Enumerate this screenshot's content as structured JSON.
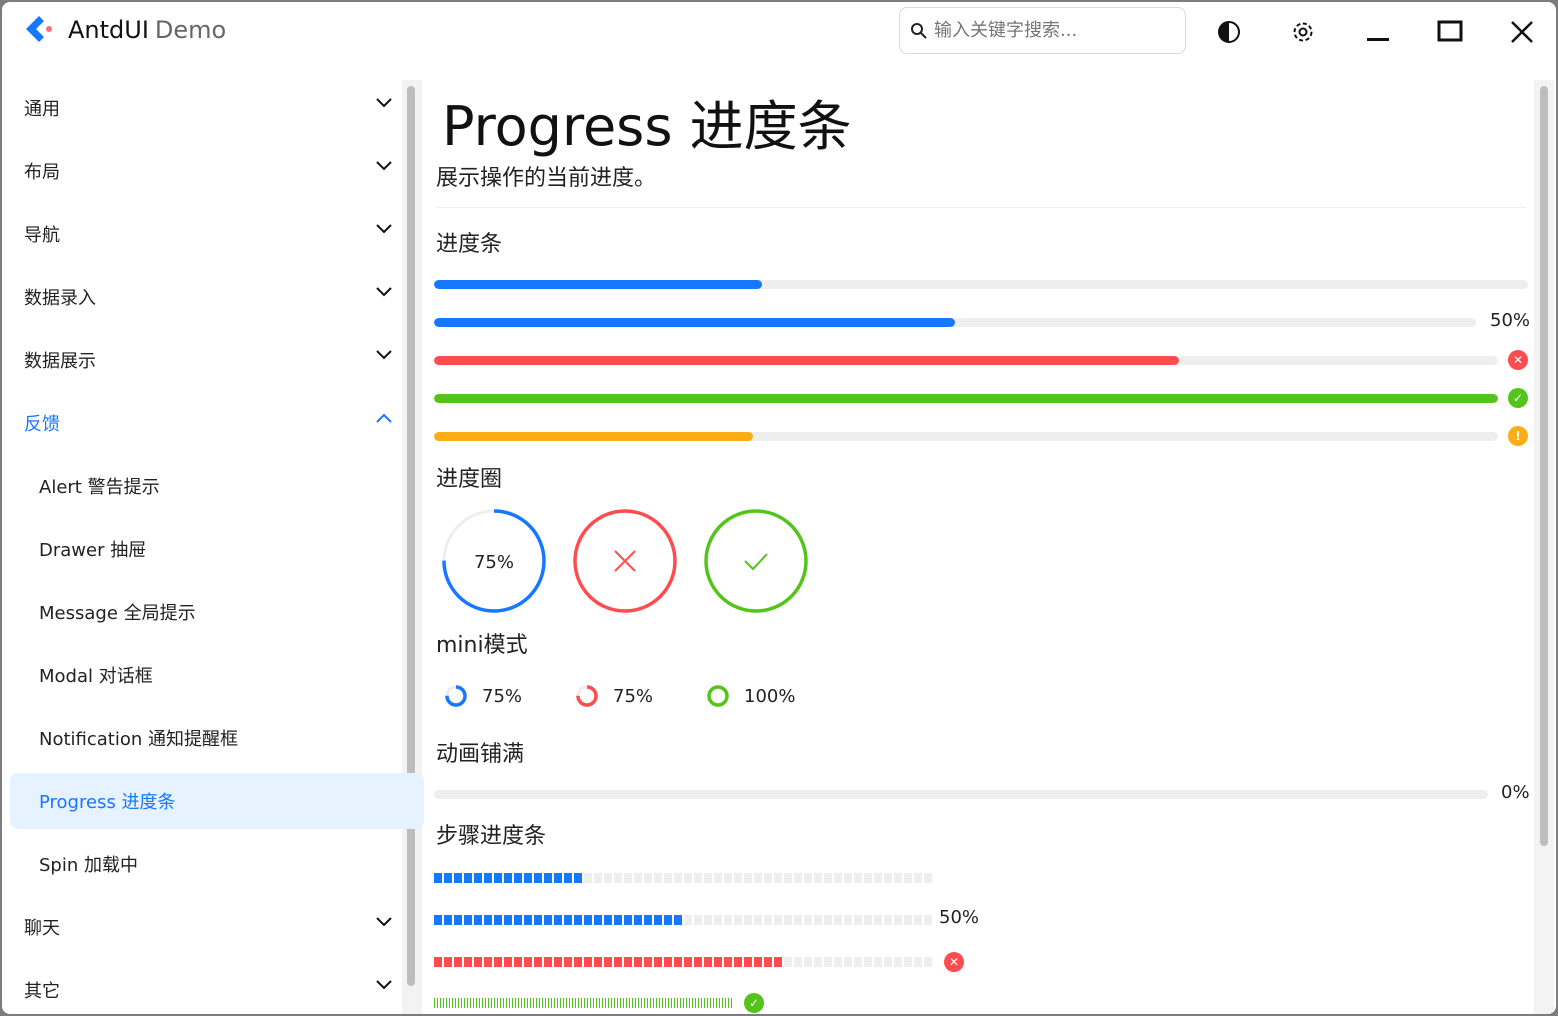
{
  "app": {
    "title": "AntdUI",
    "subtitle": "Demo"
  },
  "search": {
    "placeholder": "输入关键字搜索..."
  },
  "sidebar": {
    "items": [
      {
        "label": "通用",
        "type": "group"
      },
      {
        "label": "布局",
        "type": "group"
      },
      {
        "label": "导航",
        "type": "group"
      },
      {
        "label": "数据录入",
        "type": "group"
      },
      {
        "label": "数据展示",
        "type": "group"
      },
      {
        "label": "反馈",
        "type": "group-open"
      },
      {
        "label": "Alert 警告提示",
        "type": "sub"
      },
      {
        "label": "Drawer 抽屉",
        "type": "sub"
      },
      {
        "label": "Message 全局提示",
        "type": "sub"
      },
      {
        "label": "Modal 对话框",
        "type": "sub"
      },
      {
        "label": "Notification 通知提醒框",
        "type": "sub"
      },
      {
        "label": "Progress 进度条",
        "type": "sub-active"
      },
      {
        "label": "Spin 加载中",
        "type": "sub"
      },
      {
        "label": "聊天",
        "type": "group"
      },
      {
        "label": "其它",
        "type": "group"
      }
    ]
  },
  "main": {
    "title": "Progress 进度条",
    "description": "展示操作的当前进度。",
    "sections": {
      "bars": "进度条",
      "circles": "进度圈",
      "mini": "mini模式",
      "anim": "动画铺满",
      "steps": "步骤进度条"
    },
    "bars": [
      {
        "percent": 30,
        "color": "#1677ff",
        "status": "normal"
      },
      {
        "percent": 50,
        "color": "#1677ff",
        "text": "50%"
      },
      {
        "percent": 70,
        "color": "#ff4d4f",
        "status": "error"
      },
      {
        "percent": 100,
        "color": "#52c41a",
        "status": "success"
      },
      {
        "percent": 30,
        "color": "#faad14",
        "status": "warning"
      }
    ],
    "circles": [
      {
        "percent": 75,
        "color": "#1677ff",
        "text": "75%"
      },
      {
        "percent": 100,
        "color": "#ff4d4f",
        "status": "error"
      },
      {
        "percent": 100,
        "color": "#52c41a",
        "status": "success"
      }
    ],
    "minis": [
      {
        "percent": 75,
        "color": "#1677ff",
        "text": "75%"
      },
      {
        "percent": 75,
        "color": "#ff4d4f",
        "text": "75%"
      },
      {
        "percent": 100,
        "color": "#52c41a",
        "text": "100%"
      }
    ],
    "anim": {
      "percent": 0,
      "text": "0%"
    },
    "steps": [
      {
        "percent": 30,
        "color": "#1677ff",
        "segments": 50
      },
      {
        "percent": 50,
        "color": "#1677ff",
        "segments": 50,
        "text": "50%"
      },
      {
        "percent": 70,
        "color": "#ff4d4f",
        "segments": 50,
        "status": "error"
      },
      {
        "percent": 100,
        "color": "#52c41a",
        "segments": 100,
        "status": "success"
      }
    ]
  },
  "colors": {
    "primary": "#1677ff",
    "error": "#ff4d4f",
    "success": "#52c41a",
    "warning": "#faad14",
    "track": "#eeeeee"
  }
}
